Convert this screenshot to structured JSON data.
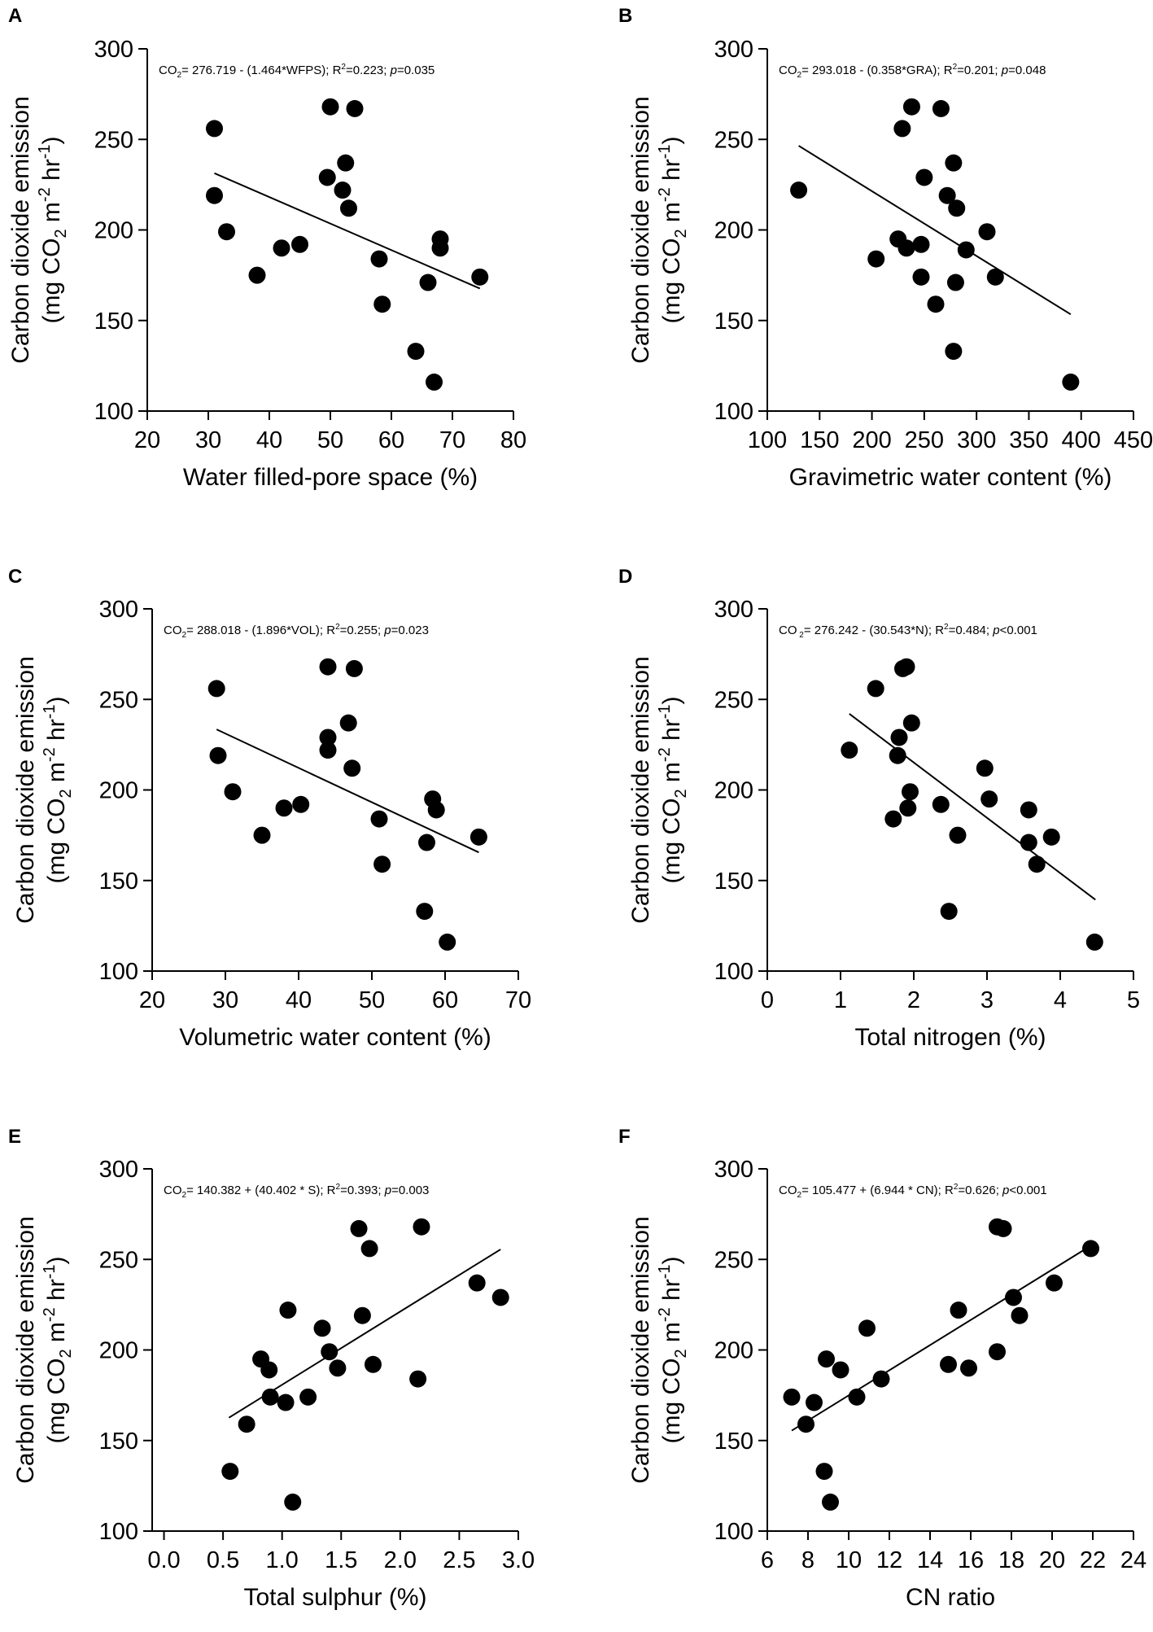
{
  "figure": {
    "y_label_line1": "Carbon dioxide emission",
    "y_label_line2_prefix": "(mg CO",
    "y_label_line2_sub": "2",
    "y_label_line2_mid1": " m",
    "y_label_line2_sup1": "-2",
    "y_label_line2_mid2": " hr",
    "y_label_line2_sup2": "-1",
    "y_label_line2_suffix": ")"
  },
  "chart_data": [
    {
      "panel": "A",
      "type": "scatter",
      "xlabel": "Water filled-pore space (%)",
      "ylabel": "Carbon dioxide emission (mg CO2 m-2 hr-1)",
      "xlim": [
        20,
        80
      ],
      "ylim": [
        100,
        300
      ],
      "xticks": [
        20,
        30,
        40,
        50,
        60,
        70,
        80
      ],
      "yticks": [
        100,
        150,
        200,
        250,
        300
      ],
      "tick_decimals": 0,
      "equation": {
        "lhs": "CO",
        "lhs_sub": "2",
        "body": "= 276.719 - (1.464*WFPS); R",
        "r2_sup": "2",
        "stats": "=0.223; ",
        "p_label": "p",
        "p_value": "=0.035"
      },
      "regression": {
        "intercept": 276.719,
        "slope": -1.464,
        "x_range": [
          31,
          74.5
        ]
      },
      "points": [
        [
          31,
          256
        ],
        [
          31,
          219
        ],
        [
          33,
          199
        ],
        [
          38,
          175
        ],
        [
          42,
          190
        ],
        [
          45,
          192
        ],
        [
          49.5,
          229
        ],
        [
          50,
          268
        ],
        [
          52,
          222
        ],
        [
          52.5,
          237
        ],
        [
          53,
          212
        ],
        [
          54,
          267
        ],
        [
          58,
          184
        ],
        [
          58.5,
          159
        ],
        [
          64,
          133
        ],
        [
          66,
          171
        ],
        [
          67,
          116
        ],
        [
          68,
          195
        ],
        [
          68,
          190
        ],
        [
          74.5,
          174
        ]
      ]
    },
    {
      "panel": "B",
      "type": "scatter",
      "xlabel": "Gravimetric water content (%)",
      "ylabel": "Carbon dioxide emission (mg CO2 m-2 hr-1)",
      "xlim": [
        100,
        450
      ],
      "ylim": [
        100,
        300
      ],
      "xticks": [
        100,
        150,
        200,
        250,
        300,
        350,
        400,
        450
      ],
      "yticks": [
        100,
        150,
        200,
        250,
        300
      ],
      "tick_decimals": 0,
      "equation": {
        "lhs": "CO",
        "lhs_sub": "2",
        "body": "= 293.018 - (0.358*GRA); R",
        "r2_sup": "2",
        "stats": "=0.201; ",
        "p_label": "p",
        "p_value": "=0.048"
      },
      "regression": {
        "intercept": 293.018,
        "slope": -0.358,
        "x_range": [
          130,
          390
        ]
      },
      "points": [
        [
          130,
          222
        ],
        [
          204,
          184
        ],
        [
          225,
          195
        ],
        [
          229,
          256
        ],
        [
          233,
          190
        ],
        [
          238,
          268
        ],
        [
          247,
          192
        ],
        [
          247,
          174
        ],
        [
          250,
          229
        ],
        [
          261,
          159
        ],
        [
          266,
          267
        ],
        [
          272,
          219
        ],
        [
          278,
          237
        ],
        [
          280,
          171
        ],
        [
          281,
          212
        ],
        [
          278,
          133
        ],
        [
          290,
          189
        ],
        [
          310,
          199
        ],
        [
          318,
          174
        ],
        [
          390,
          116
        ]
      ]
    },
    {
      "panel": "C",
      "type": "scatter",
      "xlabel": "Volumetric water content (%)",
      "ylabel": "Carbon dioxide emission (mg CO2 m-2 hr-1)",
      "xlim": [
        20,
        70
      ],
      "ylim": [
        100,
        300
      ],
      "xticks": [
        20,
        30,
        40,
        50,
        60,
        70
      ],
      "yticks": [
        100,
        150,
        200,
        250,
        300
      ],
      "tick_decimals": 0,
      "equation": {
        "lhs": "CO",
        "lhs_sub": "2",
        "body": "= 288.018 - (1.896*VOL); R",
        "r2_sup": "2",
        "stats": "=0.255; ",
        "p_label": "p",
        "p_value": "=0.023"
      },
      "regression": {
        "intercept": 288.018,
        "slope": -1.896,
        "x_range": [
          28.8,
          64.6
        ]
      },
      "points": [
        [
          28.8,
          256
        ],
        [
          29,
          219
        ],
        [
          31,
          199
        ],
        [
          35,
          175
        ],
        [
          38,
          190
        ],
        [
          40.3,
          192
        ],
        [
          44,
          268
        ],
        [
          44,
          229
        ],
        [
          44,
          222
        ],
        [
          46.8,
          237
        ],
        [
          47.3,
          212
        ],
        [
          47.6,
          267
        ],
        [
          51,
          184
        ],
        [
          51.4,
          159
        ],
        [
          57.2,
          133
        ],
        [
          57.5,
          171
        ],
        [
          58.3,
          195
        ],
        [
          58.8,
          189
        ],
        [
          60.3,
          116
        ],
        [
          64.6,
          174
        ]
      ]
    },
    {
      "panel": "D",
      "type": "scatter",
      "xlabel": "Total nitrogen (%)",
      "ylabel": "Carbon dioxide emission (mg CO2 m-2 hr-1)",
      "xlim": [
        0,
        5
      ],
      "ylim": [
        100,
        300
      ],
      "xticks": [
        0,
        1,
        2,
        3,
        4,
        5
      ],
      "yticks": [
        100,
        150,
        200,
        250,
        300
      ],
      "tick_decimals": 0,
      "equation": {
        "lhs": "CO",
        "lhs_sub": " 2",
        "body": "= 276.242 - (30.543*N); R",
        "r2_sup": "2",
        "stats": "=0.484; ",
        "p_label": "p",
        "p_value": "<0.001"
      },
      "regression": {
        "intercept": 276.242,
        "slope": -30.543,
        "x_range": [
          1.12,
          4.48
        ]
      },
      "points": [
        [
          1.12,
          222
        ],
        [
          1.48,
          256
        ],
        [
          1.72,
          184
        ],
        [
          1.78,
          219
        ],
        [
          1.8,
          229
        ],
        [
          1.85,
          267
        ],
        [
          1.9,
          268
        ],
        [
          1.92,
          190
        ],
        [
          1.95,
          199
        ],
        [
          1.97,
          237
        ],
        [
          2.37,
          192
        ],
        [
          2.48,
          133
        ],
        [
          2.6,
          175
        ],
        [
          2.97,
          212
        ],
        [
          3.03,
          195
        ],
        [
          3.57,
          189
        ],
        [
          3.57,
          171
        ],
        [
          3.68,
          159
        ],
        [
          3.88,
          174
        ],
        [
          4.47,
          116
        ]
      ]
    },
    {
      "panel": "E",
      "type": "scatter",
      "xlabel": "Total sulphur (%)",
      "ylabel": "Carbon dioxide emission (mg CO2 m-2 hr-1)",
      "xlim": [
        -0.1,
        3.0
      ],
      "ylim": [
        100,
        300
      ],
      "xticks": [
        0.0,
        0.5,
        1.0,
        1.5,
        2.0,
        2.5,
        3.0
      ],
      "yticks": [
        100,
        150,
        200,
        250,
        300
      ],
      "tick_decimals": 1,
      "equation": {
        "lhs": "CO",
        "lhs_sub": "2",
        "body": "= 140.382 + (40.402 * S); R",
        "r2_sup": "2",
        "stats": "=0.393; ",
        "p_label": "p",
        "p_value": "=0.003"
      },
      "regression": {
        "intercept": 140.382,
        "slope": 40.402,
        "x_range": [
          0.55,
          2.85
        ]
      },
      "points": [
        [
          0.56,
          133
        ],
        [
          0.7,
          159
        ],
        [
          0.82,
          195
        ],
        [
          0.89,
          189
        ],
        [
          0.9,
          174
        ],
        [
          1.03,
          171
        ],
        [
          1.05,
          222
        ],
        [
          1.09,
          116
        ],
        [
          1.22,
          174
        ],
        [
          1.34,
          212
        ],
        [
          1.4,
          199
        ],
        [
          1.47,
          190
        ],
        [
          1.65,
          267
        ],
        [
          1.68,
          219
        ],
        [
          1.74,
          256
        ],
        [
          1.77,
          192
        ],
        [
          2.15,
          184
        ],
        [
          2.18,
          268
        ],
        [
          2.65,
          237
        ],
        [
          2.85,
          229
        ]
      ]
    },
    {
      "panel": "F",
      "type": "scatter",
      "xlabel": "CN ratio",
      "ylabel": "Carbon dioxide emission (mg CO2 m-2 hr-1)",
      "xlim": [
        6,
        24
      ],
      "ylim": [
        100,
        300
      ],
      "xticks": [
        6,
        8,
        10,
        12,
        14,
        16,
        18,
        20,
        22,
        24
      ],
      "yticks": [
        100,
        150,
        200,
        250,
        300
      ],
      "tick_decimals": 0,
      "equation": {
        "lhs": "CO",
        "lhs_sub": "2",
        "body": "= 105.477 + (6.944 * CN); R",
        "r2_sup": "2",
        "stats": "=0.626; ",
        "p_label": "p",
        "p_value": "<0.001"
      },
      "regression": {
        "intercept": 105.477,
        "slope": 6.944,
        "x_range": [
          7.2,
          21.8
        ]
      },
      "points": [
        [
          7.2,
          174
        ],
        [
          7.9,
          159
        ],
        [
          8.3,
          171
        ],
        [
          8.8,
          133
        ],
        [
          8.9,
          195
        ],
        [
          9.1,
          116
        ],
        [
          9.6,
          189
        ],
        [
          10.4,
          174
        ],
        [
          10.9,
          212
        ],
        [
          11.6,
          184
        ],
        [
          14.9,
          192
        ],
        [
          15.4,
          222
        ],
        [
          15.9,
          190
        ],
        [
          17.3,
          199
        ],
        [
          17.3,
          268
        ],
        [
          17.6,
          267
        ],
        [
          18.1,
          229
        ],
        [
          18.4,
          219
        ],
        [
          20.1,
          237
        ],
        [
          21.9,
          256
        ]
      ]
    }
  ]
}
